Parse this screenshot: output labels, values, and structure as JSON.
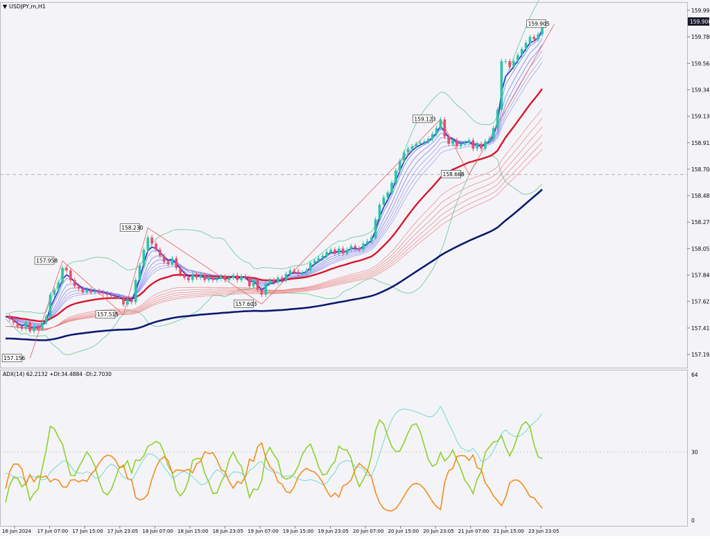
{
  "chart_data": {
    "type": "candlestick",
    "symbol_label": "USDJPY,m,H1",
    "price_axis": {
      "ticks": [
        "159.995",
        "159.780",
        "159.565",
        "159.345",
        "159.130",
        "158.915",
        "158.700",
        "158.485",
        "158.270",
        "158.055",
        "157.840",
        "157.625",
        "157.410",
        "157.195"
      ],
      "current_price": "159.906",
      "ylim": [
        157.08,
        160.08
      ]
    },
    "time_axis": {
      "ticks": [
        "16 Jun 2024",
        "17 Jun 07:00",
        "17 Jun 15:00",
        "17 Jun 23:05",
        "18 Jun 07:00",
        "18 Jun 15:00",
        "18 Jun 23:05",
        "19 Jun 07:00",
        "19 Jun 15:00",
        "19 Jun 23:05",
        "20 Jun 07:00",
        "20 Jun 15:00",
        "20 Jun 23:05",
        "21 Jun 07:00",
        "21 Jun 15:00",
        "23 Jun 23:05"
      ]
    },
    "price_path": [
      157.5,
      157.48,
      157.45,
      157.42,
      157.4,
      157.45,
      157.38,
      157.42,
      157.4,
      157.45,
      157.5,
      157.68,
      157.72,
      157.78,
      157.9,
      157.88,
      157.8,
      157.75,
      157.73,
      157.7,
      157.72,
      157.7,
      157.71,
      157.7,
      157.69,
      157.68,
      157.67,
      157.66,
      157.66,
      157.6,
      157.64,
      157.62,
      157.8,
      157.92,
      158.05,
      158.15,
      158.1,
      158.05,
      158.0,
      157.95,
      157.93,
      157.98,
      157.9,
      157.85,
      157.82,
      157.8,
      157.85,
      157.82,
      157.84,
      157.8,
      157.82,
      157.8,
      157.81,
      157.83,
      157.8,
      157.82,
      157.84,
      157.8,
      157.83,
      157.82,
      157.75,
      157.8,
      157.72,
      157.68,
      157.77,
      157.8,
      157.78,
      157.82,
      157.8,
      157.85,
      157.88,
      157.87,
      157.85,
      157.86,
      157.88,
      157.94,
      157.96,
      157.98,
      158.0,
      158.03,
      158.05,
      158.02,
      158.06,
      158.02,
      158.05,
      158.08,
      158.06,
      158.05,
      158.1,
      158.12,
      158.15,
      158.3,
      158.42,
      158.48,
      158.52,
      158.6,
      158.7,
      158.78,
      158.85,
      158.88,
      158.9,
      158.92,
      158.93,
      158.94,
      158.96,
      159.0,
      159.05,
      159.12,
      158.98,
      158.92,
      158.95,
      158.9,
      158.92,
      158.93,
      158.95,
      158.88,
      158.92,
      158.88,
      158.94,
      158.96,
      159.05,
      159.2,
      159.6,
      159.6,
      159.55,
      159.6,
      159.65,
      159.7,
      159.75,
      159.8,
      159.78,
      159.82,
      159.92
    ],
    "labels": [
      {
        "text": "157.958",
        "price": 157.958,
        "bar": 14
      },
      {
        "text": "157.156",
        "price": 157.156,
        "bar": 6
      },
      {
        "text": "157.515",
        "price": 157.515,
        "bar": 29
      },
      {
        "text": "158.230",
        "price": 158.23,
        "bar": 35
      },
      {
        "text": "157.603",
        "price": 157.603,
        "bar": 63
      },
      {
        "text": "159.123",
        "price": 159.123,
        "bar": 107
      },
      {
        "text": "158.668",
        "price": 158.668,
        "bar": 114
      },
      {
        "text": "159.905",
        "price": 159.905,
        "bar": 135
      }
    ],
    "hline_price": 158.668,
    "adx": {
      "label": "ADX(14) 62.2132 +DI:34.4884 -DI:2.7030",
      "scale_ticks": [
        "64",
        "30",
        "0"
      ],
      "ylim": [
        0,
        64
      ],
      "level": 30
    }
  }
}
